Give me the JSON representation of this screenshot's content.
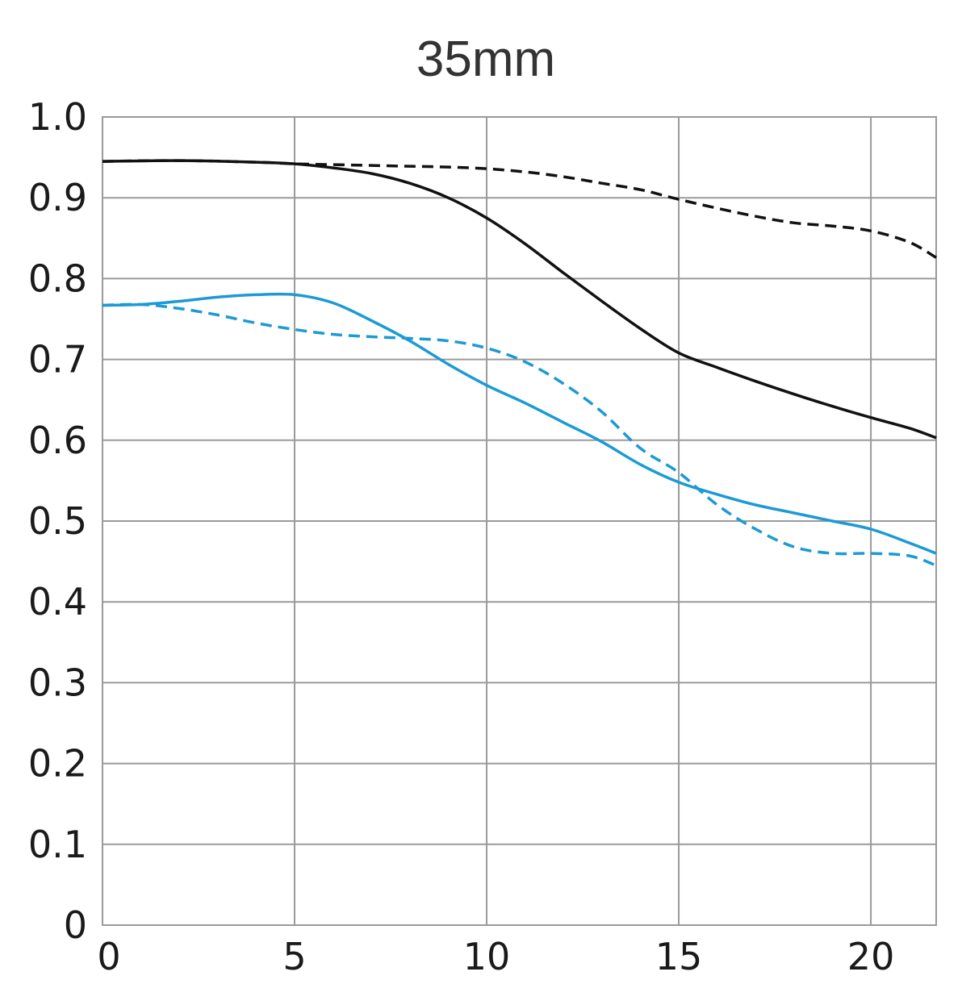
{
  "chart_data": {
    "type": "line",
    "title": "35mm",
    "xlabel": "",
    "ylabel": "",
    "xlim": [
      0,
      21.7
    ],
    "ylim": [
      0,
      1.0
    ],
    "x_ticks": [
      0,
      5,
      10,
      15,
      20
    ],
    "x_tick_labels": [
      "0",
      "5",
      "10",
      "15",
      "20"
    ],
    "y_ticks": [
      0,
      0.1,
      0.2,
      0.3,
      0.4,
      0.5,
      0.6,
      0.7,
      0.8,
      0.9,
      1.0
    ],
    "y_tick_labels": [
      "0",
      "0.1",
      "0.2",
      "0.3",
      "0.4",
      "0.5",
      "0.6",
      "0.7",
      "0.8",
      "0.9",
      "1.0"
    ],
    "grid": true,
    "series": [
      {
        "color": "#111111",
        "dash": false,
        "x": [
          0,
          2,
          4,
          5,
          6,
          7,
          8,
          9,
          10,
          11,
          12,
          13,
          14,
          15,
          16,
          17,
          18,
          19,
          20,
          21,
          21.7
        ],
        "y": [
          0.945,
          0.946,
          0.944,
          0.942,
          0.937,
          0.93,
          0.918,
          0.9,
          0.875,
          0.843,
          0.807,
          0.772,
          0.738,
          0.708,
          0.69,
          0.673,
          0.657,
          0.642,
          0.628,
          0.615,
          0.603
        ]
      },
      {
        "color": "#111111",
        "dash": true,
        "x": [
          0,
          2,
          4,
          5,
          6,
          7,
          8,
          9,
          10,
          11,
          12,
          13,
          14,
          15,
          16,
          17,
          18,
          19,
          20,
          21,
          21.7
        ],
        "y": [
          0.945,
          0.946,
          0.944,
          0.942,
          0.941,
          0.94,
          0.939,
          0.938,
          0.936,
          0.932,
          0.926,
          0.918,
          0.91,
          0.898,
          0.887,
          0.877,
          0.869,
          0.865,
          0.859,
          0.845,
          0.826
        ]
      },
      {
        "color": "#1b9ad6",
        "dash": false,
        "x": [
          0,
          1,
          2,
          3,
          4,
          5,
          6,
          7,
          8,
          9,
          10,
          11,
          12,
          13,
          14,
          15,
          16,
          17,
          18,
          19,
          20,
          21,
          21.7
        ],
        "y": [
          0.767,
          0.768,
          0.772,
          0.777,
          0.78,
          0.78,
          0.77,
          0.748,
          0.723,
          0.694,
          0.668,
          0.646,
          0.622,
          0.598,
          0.57,
          0.548,
          0.533,
          0.52,
          0.51,
          0.5,
          0.49,
          0.473,
          0.46
        ]
      },
      {
        "color": "#1b9ad6",
        "dash": true,
        "x": [
          0,
          1,
          2,
          3,
          4,
          5,
          6,
          7,
          8,
          9,
          10,
          11,
          12,
          13,
          14,
          15,
          16,
          17,
          18,
          19,
          20,
          21,
          21.7
        ],
        "y": [
          0.767,
          0.768,
          0.763,
          0.755,
          0.745,
          0.737,
          0.731,
          0.728,
          0.726,
          0.723,
          0.714,
          0.697,
          0.67,
          0.635,
          0.59,
          0.56,
          0.52,
          0.49,
          0.468,
          0.46,
          0.46,
          0.457,
          0.445
        ]
      }
    ]
  }
}
